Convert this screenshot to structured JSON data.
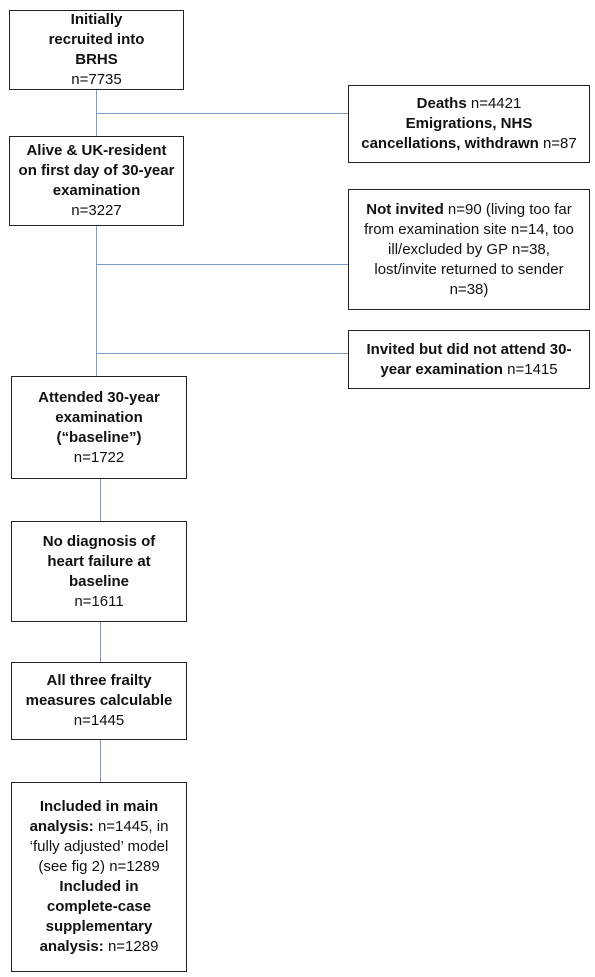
{
  "flow": {
    "recruited": {
      "title": "Initially recruited into BRHS",
      "count": "n=7735"
    },
    "alive": {
      "title": "Alive & UK-resident on first day of 30-year examination",
      "count": "n=3227"
    },
    "attended": {
      "title": "Attended 30-year examination (“baseline”)",
      "count": "n=1722"
    },
    "no_hf": {
      "title": "No diagnosis of heart failure at baseline",
      "count": "n=1611"
    },
    "frailty": {
      "title": "All three frailty measures calculable",
      "count": "n=1445"
    },
    "included": {
      "main_label": "Included in main analysis:",
      "main_text": " n=1445, in ‘fully adjusted’ model (see fig 2) n=1289",
      "cc_label": "Included in complete-case supplementary analysis:",
      "cc_text": " n=1289"
    }
  },
  "exclusions": {
    "deaths": {
      "label1": "Deaths",
      "value1": " n=4421",
      "label2": "Emigrations, NHS cancellations, withdrawn",
      "value2": " n=87"
    },
    "not_invited": {
      "label": "Not invited",
      "text": " n=90 (living too far from examination site n=14, too ill/excluded by GP n=38, lost/invite returned to sender n=38)"
    },
    "not_attend": {
      "label": "Invited but did not attend 30-year examination",
      "value": " n=1415"
    }
  },
  "colors": {
    "connector": "#7a9cc6",
    "border": "#222222"
  }
}
